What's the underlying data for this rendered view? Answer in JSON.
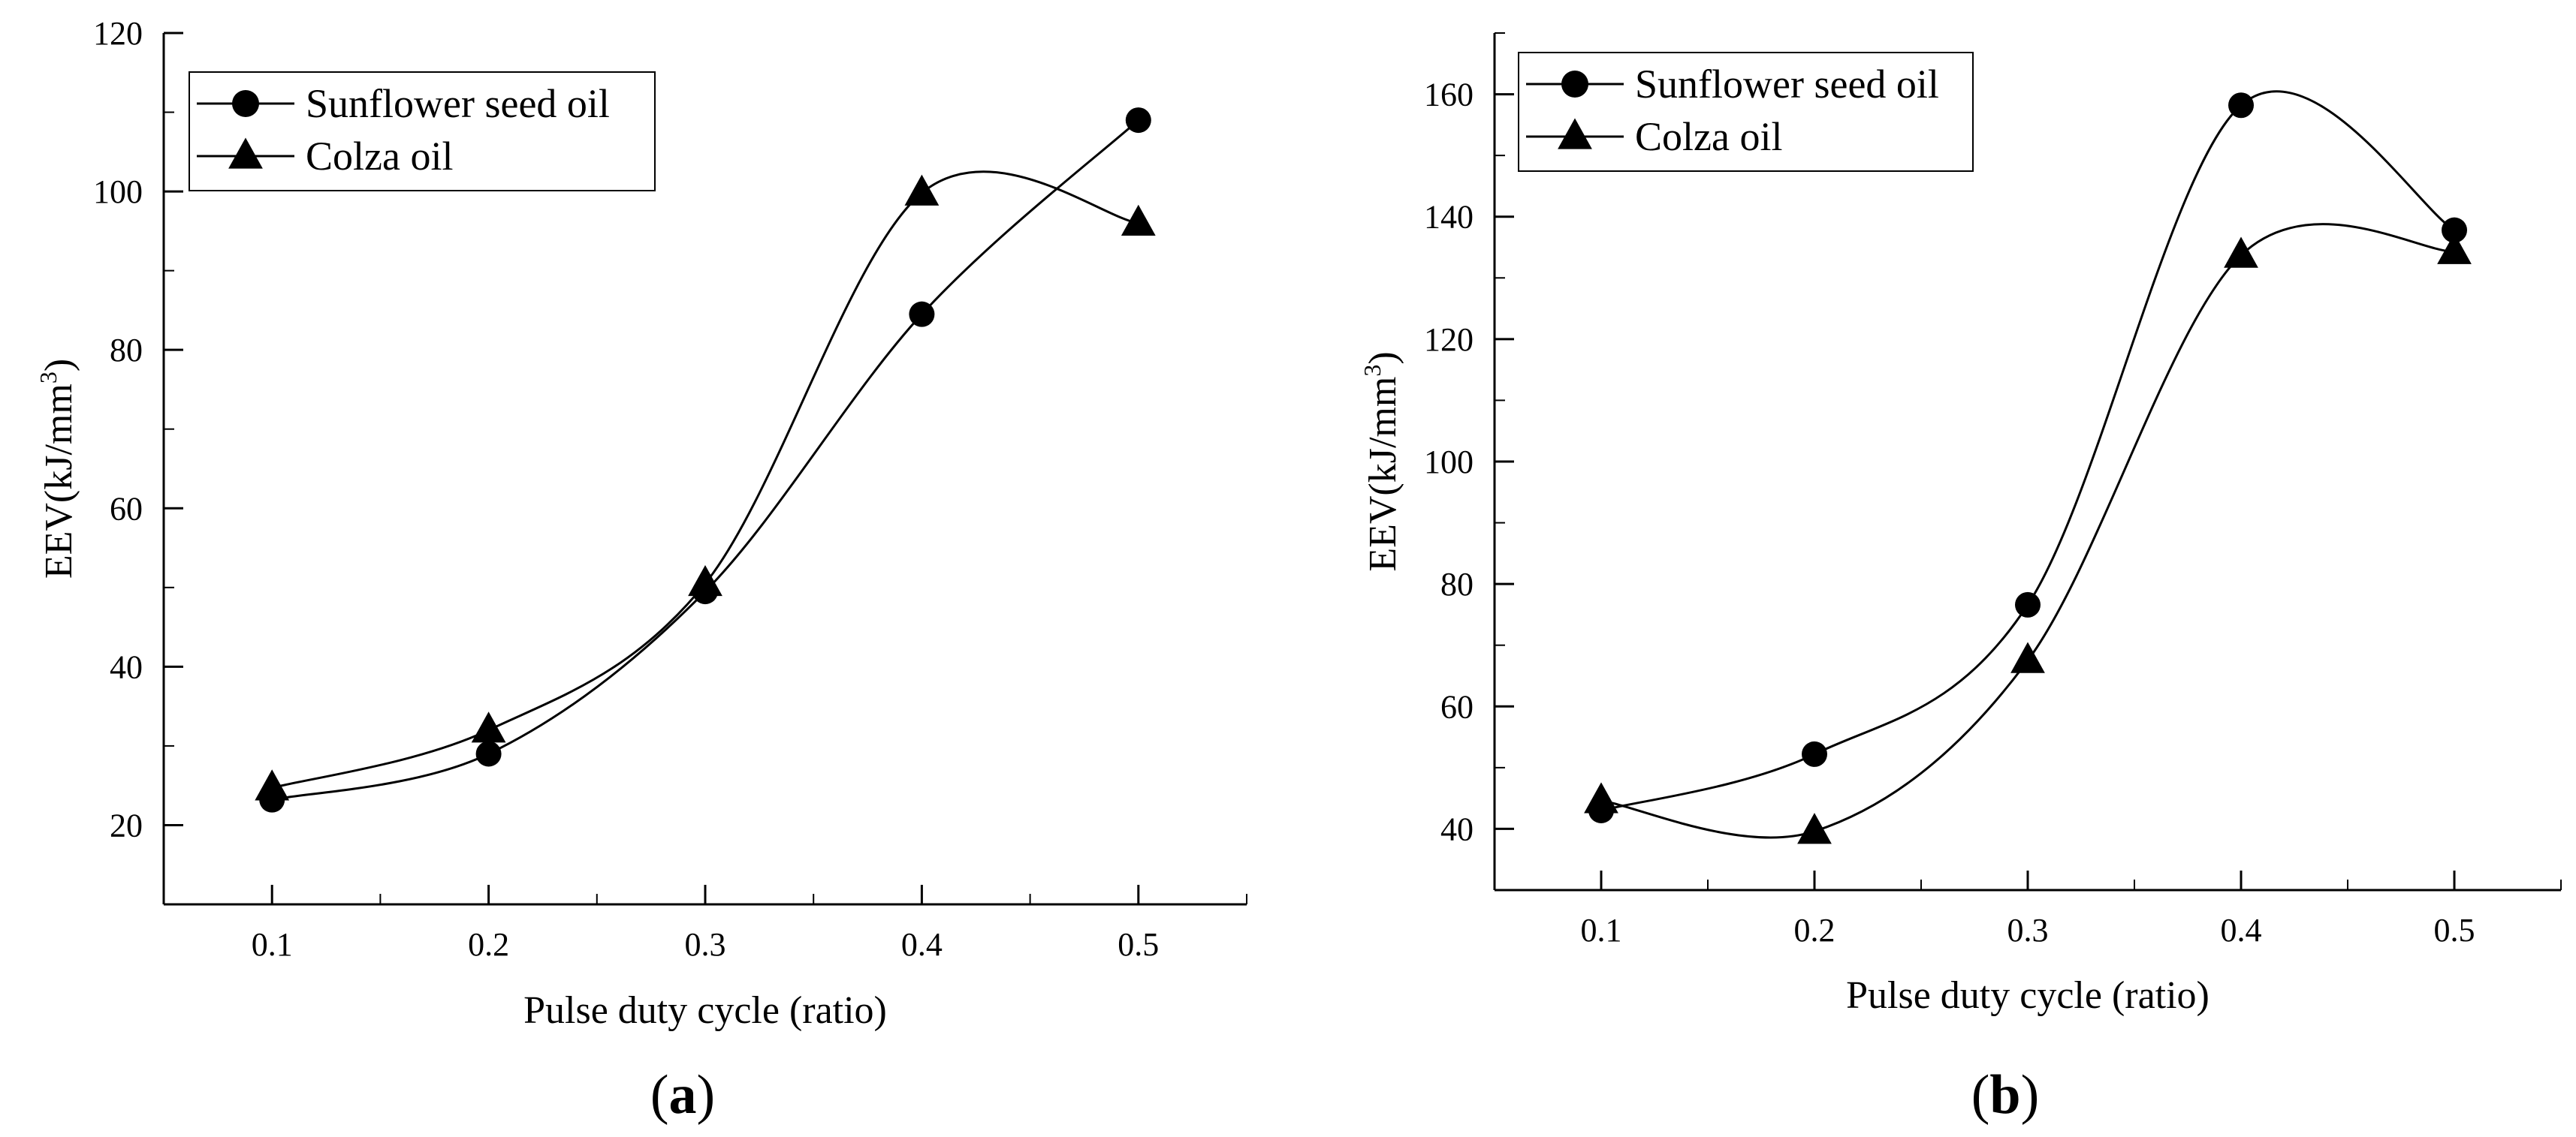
{
  "chart_data": [
    {
      "type": "line",
      "panel_label": "a",
      "title": "",
      "xlabel": "Pulse duty cycle (ratio)",
      "ylabel": "EEV(kJ/mm",
      "ylabel_sup": "3",
      "ylabel_close": ")",
      "xlim": [
        0.05,
        0.55
      ],
      "ylim": [
        10,
        120
      ],
      "xticks": [
        0.1,
        0.2,
        0.3,
        0.4,
        0.5
      ],
      "xtick_labels": [
        "0.1",
        "0.2",
        "0.3",
        "0.4",
        "0.5"
      ],
      "yticks": [
        20,
        40,
        60,
        80,
        100,
        120
      ],
      "ytick_labels": [
        "20",
        "40",
        "60",
        "80",
        "100",
        "120"
      ],
      "legend_position": "top-left",
      "x": [
        0.1,
        0.2,
        0.3,
        0.4,
        0.5
      ],
      "series": [
        {
          "name": "Sunflower seed oil",
          "marker": "circle",
          "values": [
            23.2,
            29.0,
            49.5,
            84.5,
            109.0
          ]
        },
        {
          "name": "Colza oil",
          "marker": "triangle",
          "values": [
            24.7,
            32.0,
            50.5,
            99.8,
            96.0
          ]
        }
      ]
    },
    {
      "type": "line",
      "panel_label": "b",
      "title": "",
      "xlabel": "Pulse duty cycle (ratio)",
      "ylabel": "EEV(kJ/mm",
      "ylabel_sup": "3",
      "ylabel_close": ")",
      "xlim": [
        0.05,
        0.55
      ],
      "ylim": [
        30,
        170
      ],
      "xticks": [
        0.1,
        0.2,
        0.3,
        0.4,
        0.5
      ],
      "xtick_labels": [
        "0.1",
        "0.2",
        "0.3",
        "0.4",
        "0.5"
      ],
      "yticks": [
        40,
        60,
        80,
        100,
        120,
        140,
        160
      ],
      "ytick_labels": [
        "40",
        "60",
        "80",
        "100",
        "120",
        "140",
        "160"
      ],
      "legend_position": "top-left",
      "x": [
        0.1,
        0.2,
        0.3,
        0.4,
        0.5
      ],
      "series": [
        {
          "name": "Sunflower seed oil",
          "marker": "circle",
          "values": [
            43.0,
            52.2,
            76.6,
            158.2,
            137.8
          ]
        },
        {
          "name": "Colza oil",
          "marker": "triangle",
          "values": [
            44.6,
            39.6,
            67.5,
            133.7,
            134.3
          ]
        }
      ]
    }
  ]
}
